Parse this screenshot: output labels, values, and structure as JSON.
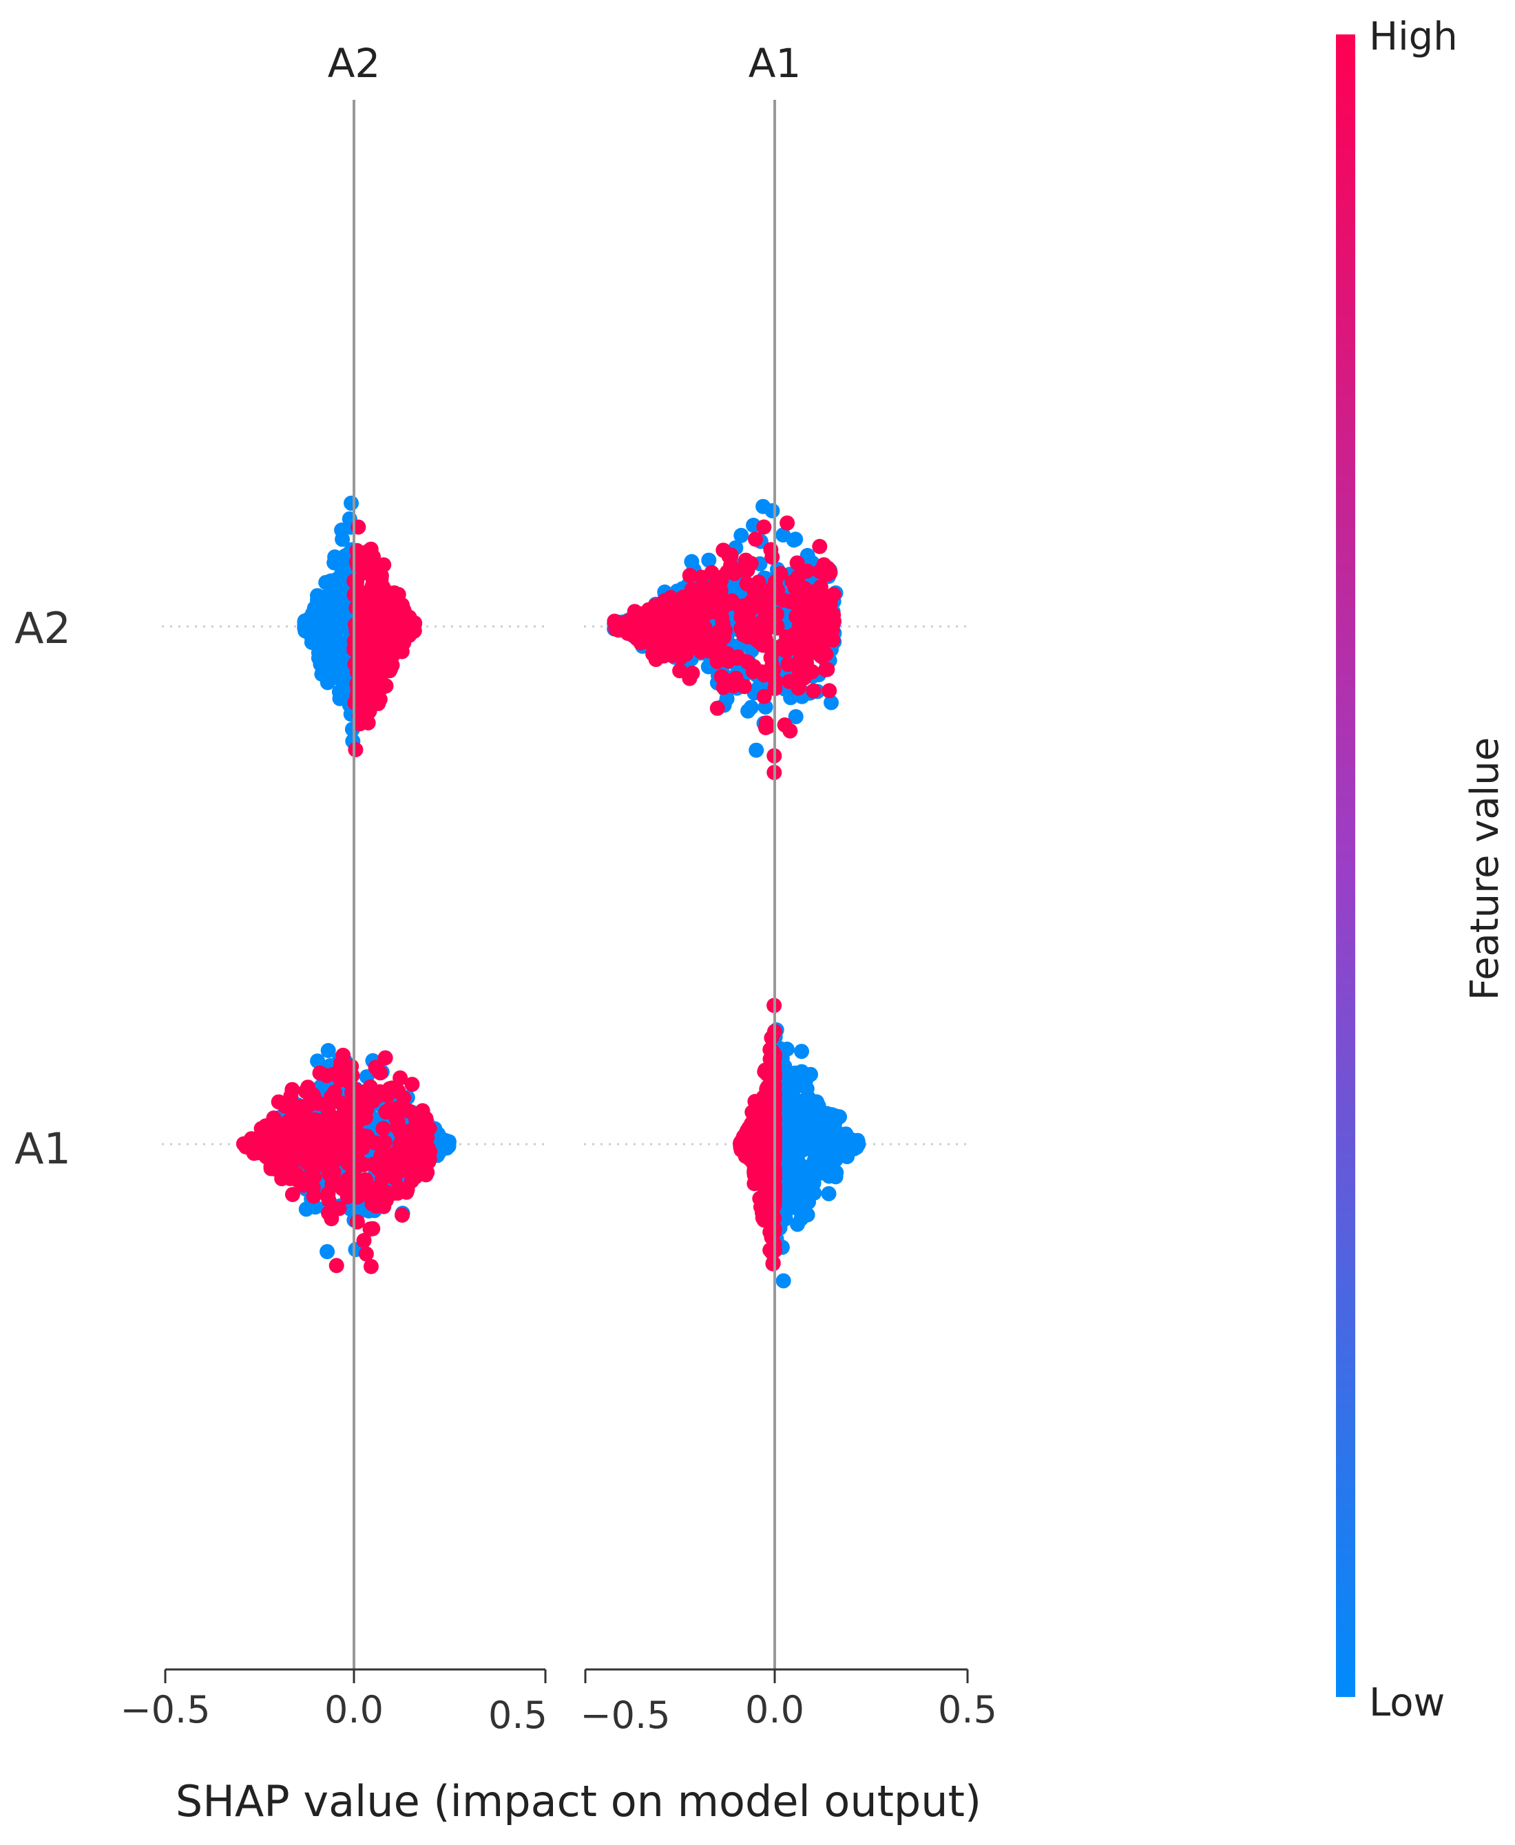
{
  "chart_data": {
    "type": "scatter",
    "subtype": "shap-beeswarm",
    "xlabel": "SHAP value (impact on model output)",
    "rows": [
      "A2",
      "A1"
    ],
    "xlim": [
      -0.5,
      0.5
    ],
    "xticks": [
      "−0.5",
      "0.0",
      "0.5"
    ],
    "panels": [
      {
        "title": "A2",
        "features": [
          {
            "name": "A2",
            "shap_range": [
              -0.13,
              0.16
            ],
            "low_value_shap": [
              -0.13,
              0.0
            ],
            "high_value_shap": [
              0.0,
              0.16
            ],
            "vertical_spread": 0.95
          },
          {
            "name": "A1",
            "shap_range": [
              -0.29,
              0.25
            ],
            "low_value_shap": [
              -0.2,
              0.25
            ],
            "high_value_shap": [
              -0.29,
              0.2
            ],
            "vertical_spread": 0.95
          }
        ]
      },
      {
        "title": "A1",
        "features": [
          {
            "name": "A2",
            "shap_range": [
              -0.42,
              0.16
            ],
            "low_value_shap": [
              -0.42,
              0.16
            ],
            "high_value_shap": [
              -0.42,
              0.16
            ],
            "vertical_spread": 0.95
          },
          {
            "name": "A1",
            "shap_range": [
              -0.09,
              0.22
            ],
            "low_value_shap": [
              0.0,
              0.22
            ],
            "high_value_shap": [
              -0.09,
              0.0
            ],
            "vertical_spread": 0.95
          }
        ]
      }
    ],
    "colorbar": {
      "title": "Feature value",
      "high_label": "High",
      "low_label": "Low",
      "high_color": "#ff0052",
      "low_color": "#008bfb"
    }
  }
}
